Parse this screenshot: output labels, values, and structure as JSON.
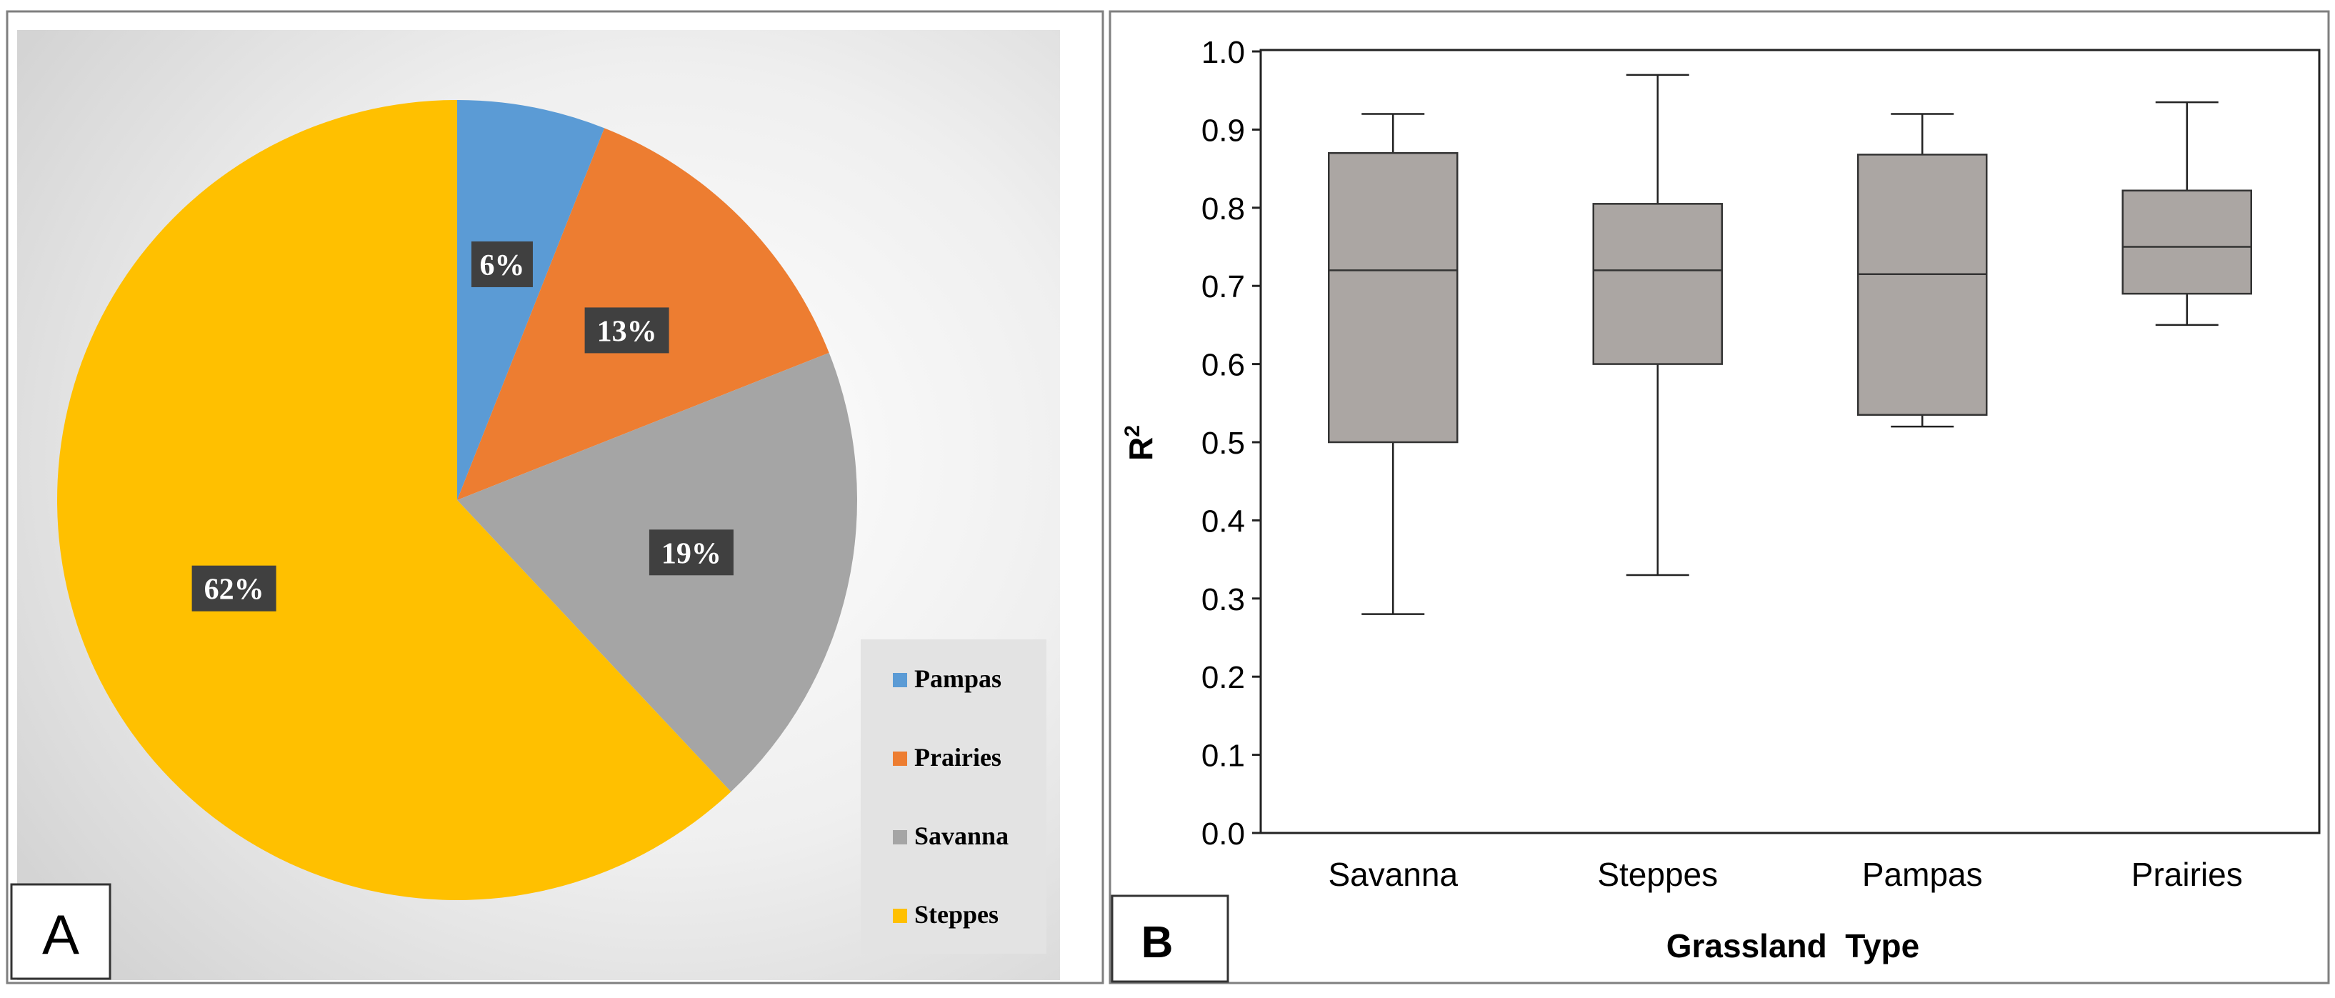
{
  "panels": {
    "a": {
      "label": "A"
    },
    "b": {
      "label": "B"
    }
  },
  "chart_data": [
    {
      "type": "pie",
      "panel": "A",
      "title": "",
      "categories": [
        "Pampas",
        "Prairies",
        "Savanna",
        "Steppes"
      ],
      "values": [
        6,
        13,
        19,
        62
      ],
      "data_labels": [
        "6%",
        "13%",
        "19%",
        "62%"
      ],
      "colors": [
        "#5b9bd5",
        "#ed7d31",
        "#a5a5a5",
        "#ffc000"
      ],
      "legend": {
        "position": "bottom-right",
        "entries": [
          "Pampas",
          "Prairies",
          "Savanna",
          "Steppes"
        ]
      }
    },
    {
      "type": "box",
      "panel": "B",
      "title": "",
      "xlabel": "Grassland  Type",
      "ylabel": "R²",
      "ylim": [
        0.0,
        1.0
      ],
      "yticks": [
        "0.0",
        "0.1",
        "0.2",
        "0.3",
        "0.4",
        "0.5",
        "0.6",
        "0.7",
        "0.8",
        "0.9",
        "1.0"
      ],
      "grid": false,
      "box_color": "#aba6a3",
      "categories": [
        "Savanna",
        "Steppes",
        "Pampas",
        "Prairies"
      ],
      "boxes": [
        {
          "name": "Savanna",
          "min": 0.28,
          "q1": 0.5,
          "median": 0.72,
          "q3": 0.87,
          "max": 0.92
        },
        {
          "name": "Steppes",
          "min": 0.33,
          "q1": 0.6,
          "median": 0.72,
          "q3": 0.805,
          "max": 0.97
        },
        {
          "name": "Pampas",
          "min": 0.52,
          "q1": 0.535,
          "median": 0.715,
          "q3": 0.868,
          "max": 0.92
        },
        {
          "name": "Prairies",
          "min": 0.65,
          "q1": 0.69,
          "median": 0.75,
          "q3": 0.822,
          "max": 0.935
        }
      ]
    }
  ]
}
